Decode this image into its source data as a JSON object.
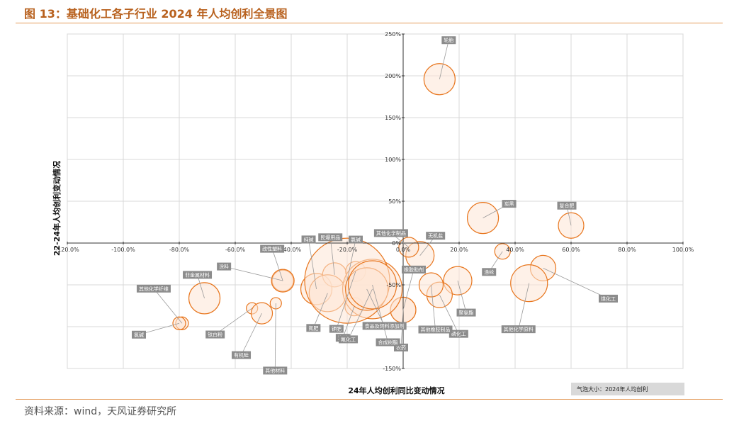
{
  "title": "图 13：基础化工各子行业 2024 年人均创利全景图",
  "source": "资料来源：wind，天风证券研究所",
  "colors": {
    "accent": "#e8761e",
    "bubble_fill": "#fde6d5",
    "label_box": "#8c8c8c",
    "rule": "#e39a58"
  },
  "chart_data": {
    "type": "scatter",
    "subtype": "bubble",
    "title": "",
    "xlabel": "24年人均创利同比变动情况",
    "ylabel": "22-24年人均创利变动情况",
    "size_note": "气泡大小：2024年人均创利",
    "xlim": [
      -1.2,
      1.0
    ],
    "ylim": [
      -1.5,
      2.5
    ],
    "x_ticks": [
      -1.2,
      -1.0,
      -0.8,
      -0.6,
      -0.4,
      -0.2,
      0.0,
      0.2,
      0.4,
      0.6,
      0.8,
      1.0
    ],
    "x_tick_labels": [
      "-120.0%",
      "-100.0%",
      "-80.0%",
      "-60.0%",
      "-40.0%",
      "-20.0%",
      "0.0%",
      "20.0%",
      "40.0%",
      "60.0%",
      "80.0%",
      "100.0%"
    ],
    "y_ticks": [
      -1.5,
      -1.0,
      -0.5,
      0.0,
      0.5,
      1.0,
      1.5,
      2.0,
      2.5
    ],
    "y_tick_labels": [
      "-150%",
      "-100%",
      "-50%",
      "0%",
      "50%",
      "100%",
      "150%",
      "200%",
      "250%"
    ],
    "grid": true,
    "legend": "none",
    "points": [
      {
        "name": "轮胎",
        "x": 0.13,
        "y": 1.96,
        "size": 22,
        "label_dx": 13,
        "label_dy": -55
      },
      {
        "name": "炭黑",
        "x": 0.285,
        "y": 0.3,
        "size": 22,
        "label_dx": 37,
        "label_dy": -20
      },
      {
        "name": "复合肥",
        "x": 0.6,
        "y": 0.21,
        "size": 18,
        "label_dx": -6,
        "label_dy": -28
      },
      {
        "name": "无机盐",
        "x": 0.06,
        "y": -0.15,
        "size": 20,
        "label_dx": 22,
        "label_dy": -28
      },
      {
        "name": "其他化学制品",
        "x": 0.02,
        "y": -0.05,
        "size": 14,
        "label_dx": -25,
        "label_dy": -20
      },
      {
        "name": "橡胶助剂",
        "x": 0.0,
        "y": -0.8,
        "size": 18,
        "label_dx": 15,
        "label_dy": -57
      },
      {
        "name": "涤纶",
        "x": 0.355,
        "y": -0.1,
        "size": 11,
        "label_dx": -19,
        "label_dy": 29
      },
      {
        "name": "煤化工",
        "x": 0.5,
        "y": -0.3,
        "size": 18,
        "label_dx": 92,
        "label_dy": 43
      },
      {
        "name": "其他化学原料",
        "x": 0.45,
        "y": -0.48,
        "size": 26,
        "label_dx": -15,
        "label_dy": 65
      },
      {
        "name": "聚氨酯",
        "x": 0.195,
        "y": -0.45,
        "size": 20,
        "label_dx": 12,
        "label_dy": 45
      },
      {
        "name": "磷化工",
        "x": 0.13,
        "y": -0.62,
        "size": 18,
        "label_dx": 27,
        "label_dy": 55
      },
      {
        "name": "其他橡胶制品",
        "x": 0.1,
        "y": -0.5,
        "size": 17,
        "label_dx": 6,
        "label_dy": 63
      },
      {
        "name": "农药",
        "x": 0.0,
        "y": -0.8,
        "size": 18,
        "label_dx": -3,
        "label_dy": 53
      },
      {
        "name": "改性塑料",
        "x": -0.43,
        "y": -0.45,
        "size": 15,
        "label_dx": -15,
        "label_dy": -45
      },
      {
        "name": "纯碱",
        "x": -0.31,
        "y": -0.55,
        "size": 22,
        "label_dx": -11,
        "label_dy": -70
      },
      {
        "name": "民爆用品",
        "x": -0.245,
        "y": -0.38,
        "size": 17,
        "label_dx": -6,
        "label_dy": -53
      },
      {
        "name": "氮肥",
        "x": -0.27,
        "y": -0.6,
        "size": 26,
        "label_dx": -20,
        "label_dy": 49
      },
      {
        "name": "钾肥",
        "x": -0.17,
        "y": -0.34,
        "size": 14,
        "label_dx": -27,
        "label_dy": 81
      },
      {
        "name": "涤纶",
        "x": -0.175,
        "y": -0.76,
        "size": 13,
        "label_dx": -16,
        "label_dy": 44
      },
      {
        "name": "氟化工",
        "x": -0.11,
        "y": -0.55,
        "size": 42,
        "label_dx": -34,
        "label_dy": 71
      },
      {
        "name": "氯碱",
        "x": -0.2,
        "y": -0.45,
        "size": 60,
        "label_dx": 12,
        "label_dy": -58
      },
      {
        "name": "食品及饲料添加剂",
        "x": -0.13,
        "y": -0.55,
        "size": 30,
        "label_dx": 25,
        "label_dy": 52
      },
      {
        "name": "合成树脂",
        "x": -0.11,
        "y": -0.5,
        "size": 34,
        "label_dx": 22,
        "label_dy": 81
      },
      {
        "name": "涂料",
        "x": -0.43,
        "y": -0.45,
        "size": 16,
        "label_dx": -83,
        "label_dy": -20
      },
      {
        "name": "非金属材料",
        "x": -0.71,
        "y": -0.66,
        "size": 22,
        "label_dx": -10,
        "label_dy": -33
      },
      {
        "name": "其他化学纤维",
        "x": -0.79,
        "y": -0.96,
        "size": 9,
        "label_dx": -40,
        "label_dy": -49
      },
      {
        "name": "氯碱",
        "x": -0.8,
        "y": -0.96,
        "size": 9,
        "label_dx": -57,
        "label_dy": 16
      },
      {
        "name": "钛白粉",
        "x": -0.54,
        "y": -0.78,
        "size": 8,
        "label_dx": -52,
        "label_dy": 37
      },
      {
        "name": "有机硅",
        "x": -0.505,
        "y": -0.84,
        "size": 15,
        "label_dx": -29,
        "label_dy": 59
      },
      {
        "name": "其他材料",
        "x": -0.455,
        "y": -0.72,
        "size": 8,
        "label_dx": -1,
        "label_dy": 95
      }
    ]
  }
}
